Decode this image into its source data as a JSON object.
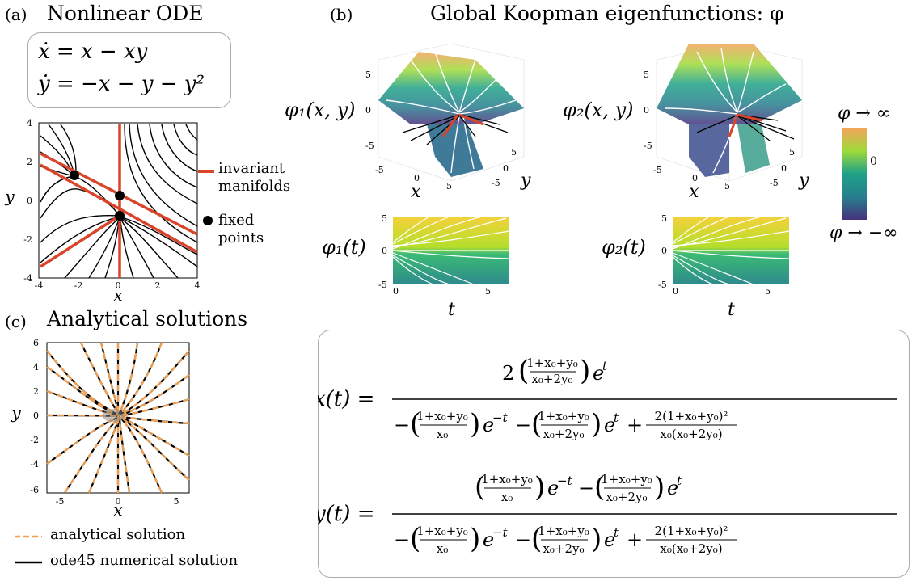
{
  "panel_a": {
    "tag": "(a)",
    "title": "Nonlinear ODE",
    "eq1": "ẋ = x − xy",
    "eq2": "ẏ = −x − y − y²",
    "xlabel": "x",
    "ylabel": "y",
    "xticks": [
      "-4",
      "-2",
      "0",
      "2",
      "4"
    ],
    "yticks": [
      "4",
      "2",
      "0",
      "-2",
      "-4"
    ],
    "legend_manifold_1": "invariant",
    "legend_manifold_2": "manifolds",
    "legend_fixed_1": "fixed",
    "legend_fixed_2": "points",
    "colors": {
      "manifold": "#d9442a",
      "trajectory": "#000000"
    }
  },
  "panel_b": {
    "tag": "(b)",
    "title": "Global Koopman eigenfunctions: φ",
    "phi1_label": "φ₁(x, y)",
    "phi2_label": "φ₂(x, y)",
    "phi1t_label": "φ₁(t)",
    "phi2t_label": "φ₂(t)",
    "surf_zticks": [
      "5",
      "0",
      "-5"
    ],
    "surf_xticks": [
      "-5",
      "0",
      "5"
    ],
    "surf_yticks": [
      "5",
      "0",
      "-5"
    ],
    "surf_xlabel": "x",
    "surf_ylabel": "y",
    "t_label": "t",
    "t_yticks": [
      "5",
      "0",
      "-5"
    ],
    "t_xticks": [
      "0",
      "5"
    ],
    "colorbar_top": "φ → ∞",
    "colorbar_mid": "0",
    "colorbar_bottom": "φ → −∞"
  },
  "panel_c": {
    "tag": "(c)",
    "title": "Analytical solutions",
    "xlabel": "x",
    "ylabel": "y",
    "xticks": [
      "-5",
      "0",
      "5"
    ],
    "yticks": [
      "6",
      "4",
      "2",
      "0",
      "-2",
      "-4",
      "-6"
    ],
    "legend_analytical": "analytical solution",
    "legend_numerical": "ode45 numerical solution",
    "colors": {
      "analytical": "#f0a050",
      "numerical": "#000000"
    }
  },
  "solutions": {
    "x_lhs": "x(t) =",
    "y_lhs": "y(t) =",
    "num_coef": "2",
    "frac_a_num": "1+x₀+y₀",
    "frac_a_den": "x₀+2y₀",
    "frac_b_num": "1+x₀+y₀",
    "frac_b_den": "x₀",
    "frac_c_num": "2(1+x₀+y₀)²",
    "frac_c_den": "x₀(x₀+2y₀)",
    "e_t": "e",
    "exp_pos": "t",
    "exp_neg": "−t"
  }
}
